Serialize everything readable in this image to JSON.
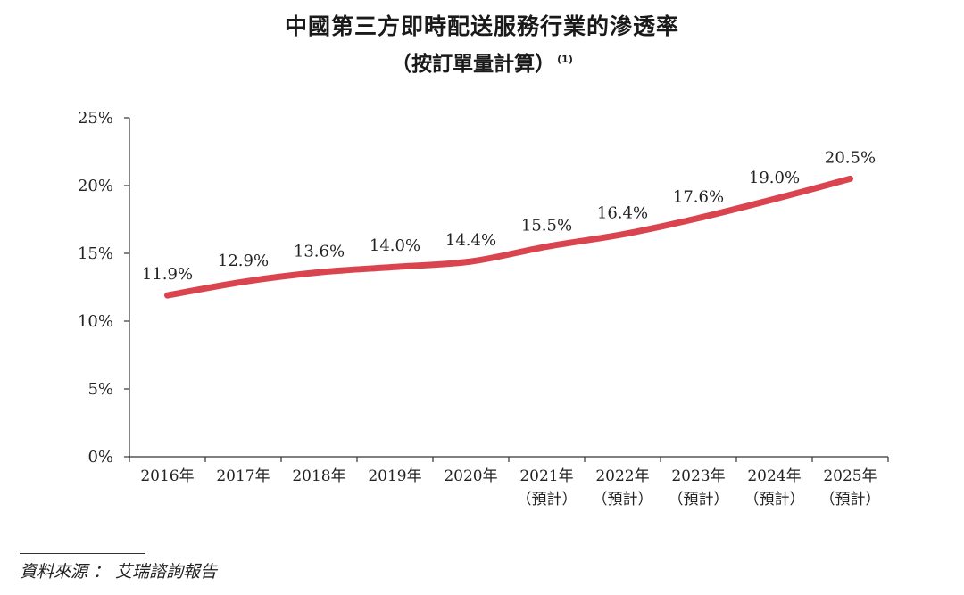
{
  "chart_data": {
    "type": "line",
    "title": "中國第三方即時配送服務行業的滲透率",
    "subtitle": "（按訂單量計算）",
    "subtitle_note": "(1)",
    "x": [
      "2016年",
      "2017年",
      "2018年",
      "2019年",
      "2020年",
      "2021年",
      "2022年",
      "2023年",
      "2024年",
      "2025年"
    ],
    "x_sublabels": [
      "",
      "",
      "",
      "",
      "",
      "（預計）",
      "（預計）",
      "（預計）",
      "（預計）",
      "（預計）"
    ],
    "series": [
      {
        "values": [
          11.9,
          12.9,
          13.6,
          14.0,
          14.4,
          15.5,
          16.4,
          17.6,
          19.0,
          20.5
        ],
        "data_labels": [
          "11.9%",
          "12.9%",
          "13.6%",
          "14.0%",
          "14.4%",
          "15.5%",
          "16.4%",
          "17.6%",
          "19.0%",
          "20.5%"
        ],
        "color": "#d9444f"
      }
    ],
    "ylim": [
      0,
      25
    ],
    "yticks": [
      0,
      5,
      10,
      15,
      20,
      25
    ],
    "ytick_labels": [
      "0%",
      "5%",
      "10%",
      "15%",
      "20%",
      "25%"
    ],
    "grid": false,
    "legend": "none"
  },
  "source": {
    "label": "資料來源",
    "separator": "：",
    "text": "艾瑞諮詢報告"
  }
}
